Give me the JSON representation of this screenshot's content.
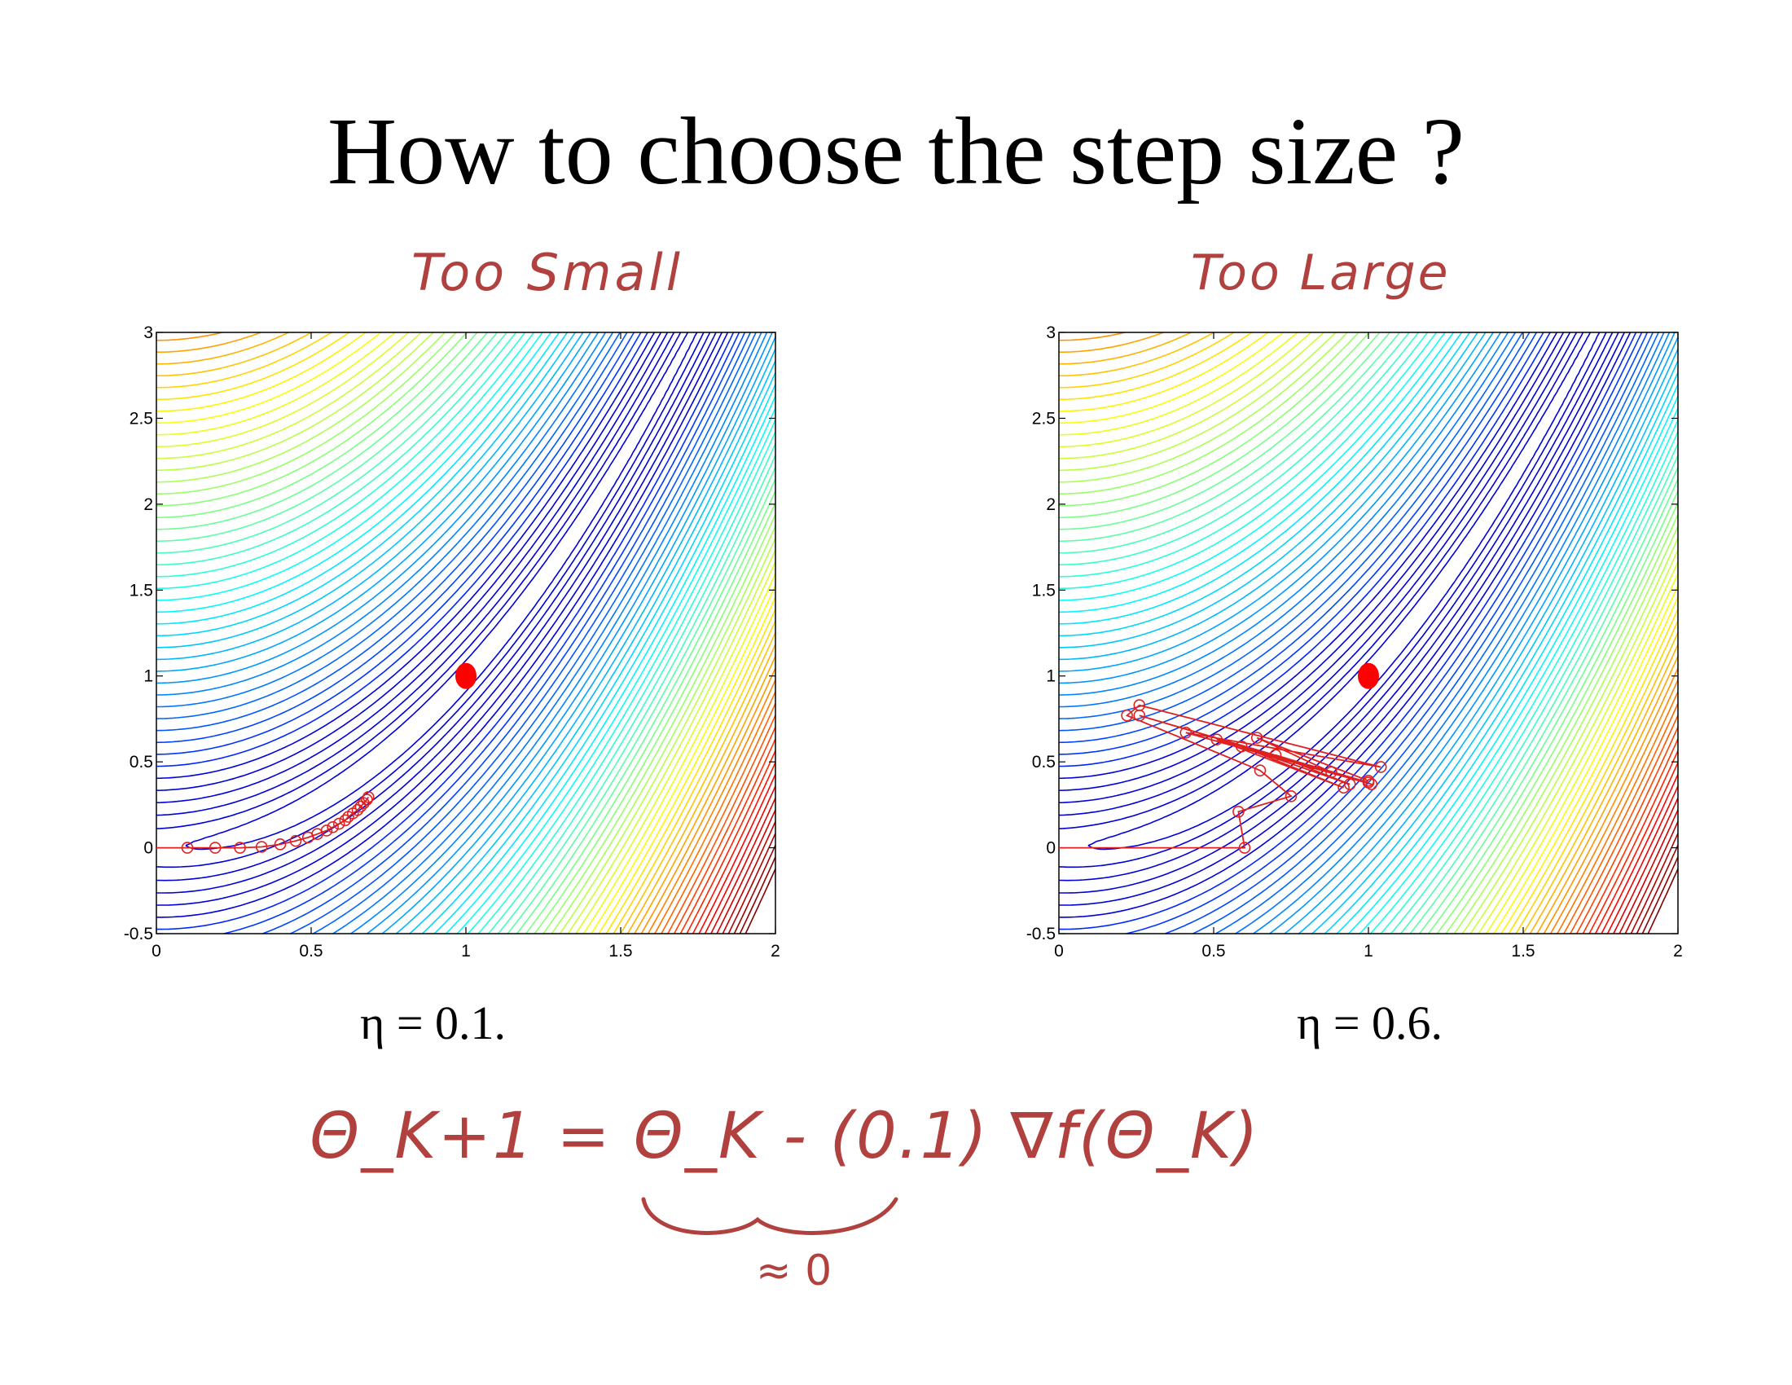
{
  "title": "How to choose the step size ?",
  "annotations": {
    "left": "Too Small",
    "right": "Too Large",
    "formula": "Θ_K+1 = Θ_K - (0.1) ∇f(Θ_K)",
    "approx": "≈ 0"
  },
  "colors": {
    "trajectory": "#e02020",
    "annotation": "#b0413e",
    "minimum": "#ff0000"
  },
  "chart_data": [
    {
      "type": "contour",
      "title": "",
      "caption": "η = 0.1.",
      "xlabel": "",
      "ylabel": "",
      "xlim": [
        0,
        2
      ],
      "ylim": [
        -0.5,
        3
      ],
      "xticks": [
        0,
        0.5,
        1,
        1.5,
        2
      ],
      "xtick_labels": [
        "0",
        "0.5",
        "1",
        "1.5",
        "2"
      ],
      "yticks": [
        -0.5,
        0,
        0.5,
        1,
        1.5,
        2,
        2.5,
        3
      ],
      "ytick_labels": [
        "-0.5",
        "0",
        "0.5",
        "1",
        "1.5",
        "2",
        "2.5",
        "3"
      ],
      "minimum": [
        1,
        1
      ],
      "trajectory": [
        [
          0,
          0
        ],
        [
          0.1,
          0
        ],
        [
          0.19,
          0
        ],
        [
          0.27,
          0
        ],
        [
          0.34,
          0.005
        ],
        [
          0.4,
          0.02
        ],
        [
          0.45,
          0.04
        ],
        [
          0.49,
          0.06
        ],
        [
          0.52,
          0.08
        ],
        [
          0.55,
          0.1
        ],
        [
          0.57,
          0.12
        ],
        [
          0.59,
          0.14
        ],
        [
          0.61,
          0.16
        ],
        [
          0.62,
          0.18
        ],
        [
          0.635,
          0.2
        ],
        [
          0.65,
          0.22
        ],
        [
          0.66,
          0.24
        ],
        [
          0.67,
          0.26
        ],
        [
          0.68,
          0.28
        ],
        [
          0.685,
          0.295
        ]
      ]
    },
    {
      "type": "contour",
      "title": "",
      "caption": "η = 0.6.",
      "xlabel": "",
      "ylabel": "",
      "xlim": [
        0,
        2
      ],
      "ylim": [
        -0.5,
        3
      ],
      "xticks": [
        0,
        0.5,
        1,
        1.5,
        2
      ],
      "xtick_labels": [
        "0",
        "0.5",
        "1",
        "1.5",
        "2"
      ],
      "yticks": [
        -0.5,
        0,
        0.5,
        1,
        1.5,
        2,
        2.5,
        3
      ],
      "ytick_labels": [
        "-0.5",
        "0",
        "0.5",
        "1",
        "1.5",
        "2",
        "2.5",
        "3"
      ],
      "minimum": [
        1,
        1
      ],
      "trajectory": [
        [
          0,
          0
        ],
        [
          0.6,
          0
        ],
        [
          0.58,
          0.21
        ],
        [
          0.75,
          0.3
        ],
        [
          0.65,
          0.45
        ],
        [
          0.22,
          0.77
        ],
        [
          0.26,
          0.83
        ],
        [
          1.04,
          0.47
        ],
        [
          0.41,
          0.67
        ],
        [
          1.01,
          0.37
        ],
        [
          0.26,
          0.77
        ],
        [
          1.0,
          0.38
        ],
        [
          0.51,
          0.63
        ],
        [
          0.92,
          0.35
        ],
        [
          0.59,
          0.59
        ],
        [
          0.94,
          0.37
        ],
        [
          0.7,
          0.54
        ],
        [
          0.88,
          0.44
        ],
        [
          0.64,
          0.64
        ],
        [
          1.0,
          0.39
        ]
      ]
    }
  ]
}
